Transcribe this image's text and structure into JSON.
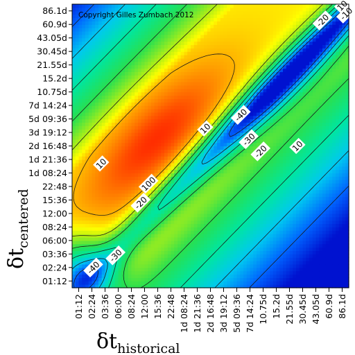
{
  "chart_data": {
    "type": "heatmap",
    "title": "",
    "annotation": "Copyright Gilles Zumbach 2012",
    "xlabel": {
      "symbol": "δt",
      "subscript": "historical"
    },
    "ylabel": {
      "symbol": "δt",
      "subscript": "centered"
    },
    "x_ticks": [
      "01:12",
      "02:24",
      "03:36",
      "06:00",
      "08:24",
      "12:00",
      "15:36",
      "22:48",
      "1d 08:24",
      "1d 21:36",
      "2d 16:48",
      "3d 19:12",
      "5d 09:36",
      "7d 14:24",
      "10.75d",
      "15.2d",
      "21.55d",
      "30.45d",
      "43.05d",
      "60.9d",
      "86.1d"
    ],
    "y_ticks": [
      "01:12",
      "02:24",
      "03:36",
      "06:00",
      "08:24",
      "12:00",
      "15:36",
      "22:48",
      "1d 08:24",
      "1d 21:36",
      "2d 16:48",
      "3d 19:12",
      "5d 09:36",
      "7d 14:24",
      "10.75d",
      "15.2d",
      "21.55d",
      "30.45d",
      "43.05d",
      "60.9d",
      "86.1d"
    ],
    "x_tick_index": [
      0,
      1,
      2,
      3,
      4,
      5,
      6,
      7,
      8,
      9,
      10,
      11,
      12,
      13,
      14,
      15,
      16,
      17,
      18,
      19,
      20
    ],
    "y_tick_index": [
      0,
      1,
      2,
      3,
      4,
      5,
      6,
      7,
      8,
      9,
      10,
      11,
      12,
      13,
      14,
      15,
      16,
      17,
      18,
      19,
      20
    ],
    "x_range": [
      -0.5,
      20.5
    ],
    "y_range": [
      -0.5,
      20.5
    ],
    "value_range": [
      -50,
      20
    ],
    "colorscale": [
      {
        "value": -50,
        "color": "#0012d0"
      },
      {
        "value": -40,
        "color": "#0064ff"
      },
      {
        "value": -30,
        "color": "#00c8f0"
      },
      {
        "value": -20,
        "color": "#00e6a0"
      },
      {
        "value": -10,
        "color": "#28e050"
      },
      {
        "value": 0,
        "color": "#b4ef14"
      },
      {
        "value": 5,
        "color": "#ffff00"
      },
      {
        "value": 10,
        "color": "#ffb400"
      },
      {
        "value": 15,
        "color": "#ff6e00"
      },
      {
        "value": 20,
        "color": "#ff1e00"
      }
    ],
    "contour_levels": [
      -50,
      -40,
      -30,
      -20,
      -10,
      0,
      10
    ],
    "contour_labels": [
      {
        "text": "10",
        "x": 20.0,
        "y": 20.4
      },
      {
        "text": "-20",
        "x": 18.5,
        "y": 19.3
      },
      {
        "text": "-10",
        "x": 20.3,
        "y": 19.8
      },
      {
        "text": "-40",
        "x": 12.3,
        "y": 12.3
      },
      {
        "text": "10",
        "x": 9.6,
        "y": 11.3
      },
      {
        "text": "-30",
        "x": 12.9,
        "y": 10.5
      },
      {
        "text": "-20",
        "x": 13.8,
        "y": 9.6
      },
      {
        "text": "10",
        "x": 16.6,
        "y": 10.0
      },
      {
        "text": "10",
        "x": 1.7,
        "y": 8.7
      },
      {
        "text": "100",
        "x": 5.3,
        "y": 7.2
      },
      {
        "text": "-20",
        "x": 4.7,
        "y": 5.8
      },
      {
        "text": "-30",
        "x": 2.8,
        "y": 1.9
      },
      {
        "text": "-40",
        "x": 1.1,
        "y": 1.0
      }
    ],
    "grid": false,
    "legend": "none"
  }
}
